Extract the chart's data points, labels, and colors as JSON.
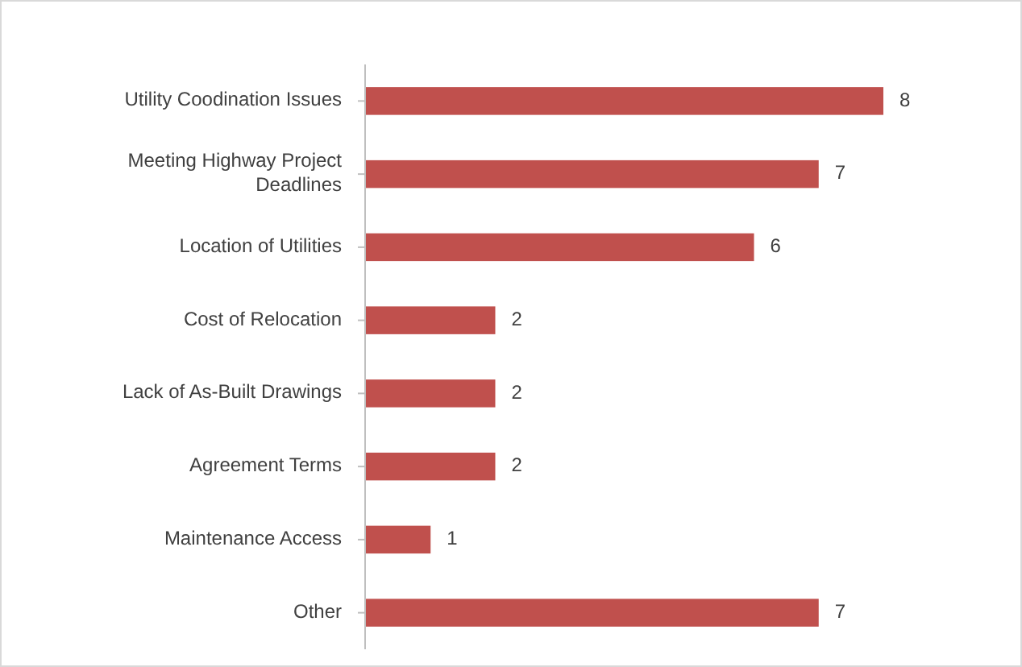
{
  "chart_data": {
    "type": "bar",
    "orientation": "horizontal",
    "categories": [
      "Utility Coodination Issues",
      "Meeting Highway Project Deadlines",
      "Location of Utilities",
      "Cost of Relocation",
      "Lack of As-Built Drawings",
      "Agreement Terms",
      "Maintenance Access",
      "Other"
    ],
    "values": [
      8,
      7,
      6,
      2,
      2,
      2,
      1,
      7
    ],
    "color": "#c0504d",
    "data_labels": true
  }
}
